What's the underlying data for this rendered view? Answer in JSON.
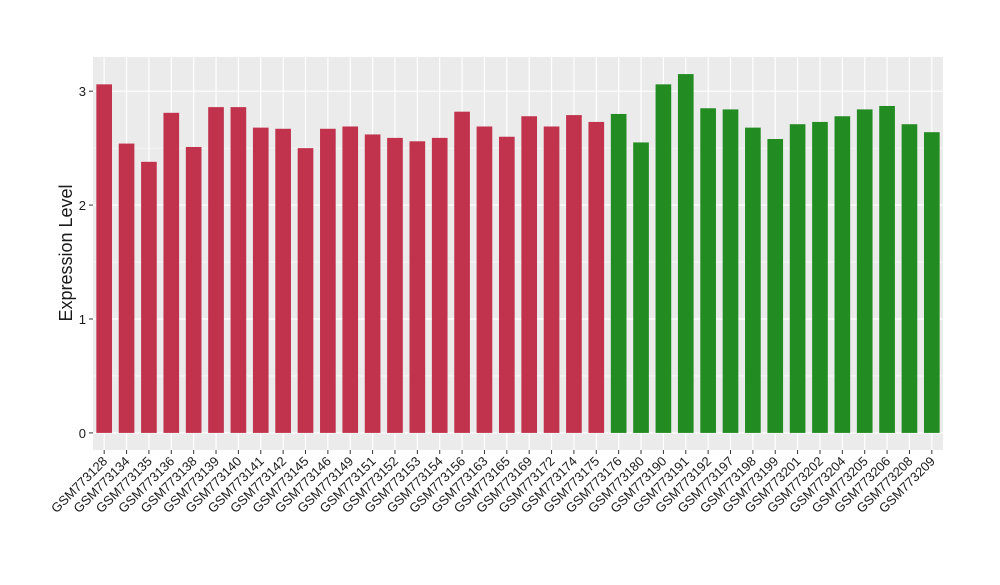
{
  "chart_data": {
    "type": "bar",
    "title": "",
    "xlabel": "",
    "ylabel": "Expression Level",
    "ylim": [
      -0.15,
      3.3
    ],
    "yticks": [
      0,
      1,
      2,
      3
    ],
    "grid": true,
    "legend": "none",
    "categories": [
      "GSM773128",
      "GSM773134",
      "GSM773135",
      "GSM773136",
      "GSM773138",
      "GSM773139",
      "GSM773140",
      "GSM773141",
      "GSM773142",
      "GSM773145",
      "GSM773146",
      "GSM773149",
      "GSM773151",
      "GSM773152",
      "GSM773153",
      "GSM773154",
      "GSM773156",
      "GSM773163",
      "GSM773165",
      "GSM773169",
      "GSM773172",
      "GSM773174",
      "GSM773175",
      "GSM773176",
      "GSM773180",
      "GSM773190",
      "GSM773191",
      "GSM773192",
      "GSM773197",
      "GSM773198",
      "GSM773199",
      "GSM773201",
      "GSM773202",
      "GSM773204",
      "GSM773205",
      "GSM773206",
      "GSM773208",
      "GSM773209"
    ],
    "values": [
      3.06,
      2.54,
      2.38,
      2.81,
      2.51,
      2.86,
      2.86,
      2.68,
      2.67,
      2.5,
      2.67,
      2.69,
      2.62,
      2.59,
      2.56,
      2.59,
      2.82,
      2.69,
      2.6,
      2.78,
      2.69,
      2.79,
      2.73,
      2.8,
      2.55,
      3.06,
      3.15,
      2.85,
      2.84,
      2.68,
      2.58,
      2.71,
      2.73,
      2.78,
      2.84,
      2.87,
      2.71,
      2.64
    ],
    "group_colors": [
      "#c1334d",
      "#c1334d",
      "#c1334d",
      "#c1334d",
      "#c1334d",
      "#c1334d",
      "#c1334d",
      "#c1334d",
      "#c1334d",
      "#c1334d",
      "#c1334d",
      "#c1334d",
      "#c1334d",
      "#c1334d",
      "#c1334d",
      "#c1334d",
      "#c1334d",
      "#c1334d",
      "#c1334d",
      "#c1334d",
      "#c1334d",
      "#c1334d",
      "#c1334d",
      "#228b22",
      "#228b22",
      "#228b22",
      "#228b22",
      "#228b22",
      "#228b22",
      "#228b22",
      "#228b22",
      "#228b22",
      "#228b22",
      "#228b22",
      "#228b22",
      "#228b22",
      "#228b22",
      "#228b22"
    ],
    "panel_color": "#ebebeb",
    "grid_color": "#ffffff"
  }
}
